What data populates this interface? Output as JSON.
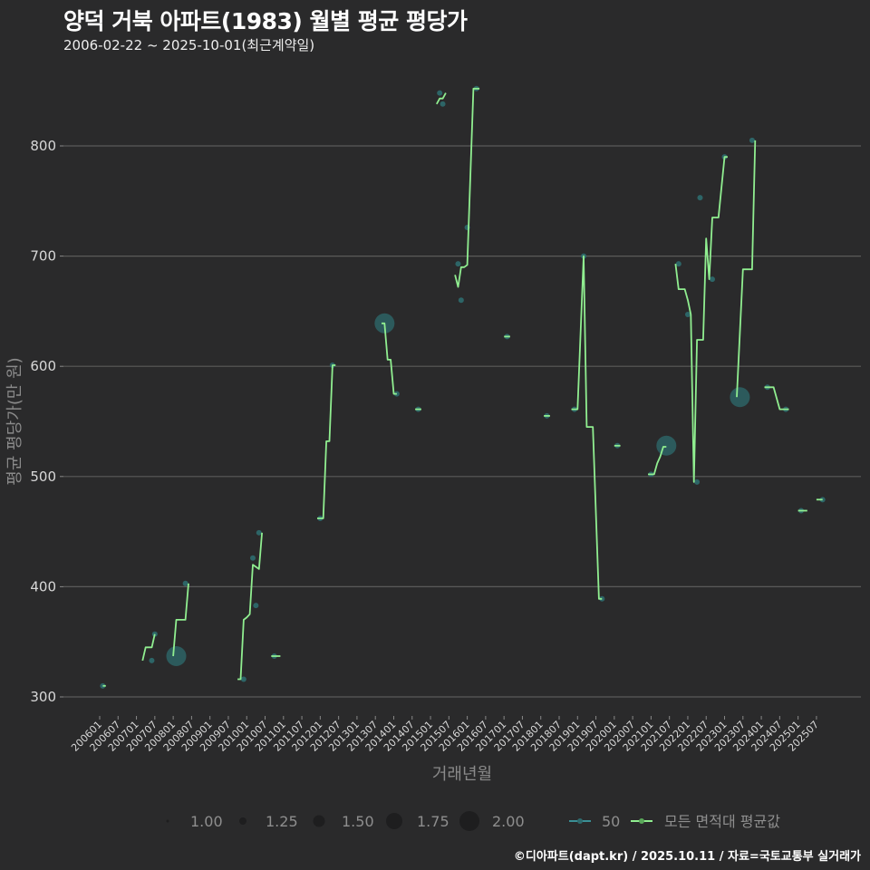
{
  "header": {
    "title": "양덕 거북 아파트(1983) 월별 평균 평당가",
    "subtitle": "2006-02-22 ~ 2025-10-01(최근계약일)"
  },
  "caption": "©디아파트(dapt.kr) / 2025.10.11 / 자료=국토교통부 실거래가",
  "colors": {
    "background": "#2a2a2b",
    "grid": "#5a5a5a",
    "line_all": "#90ee90",
    "dot_50": "#2e6b6e",
    "legend_50": "#3a8f95"
  },
  "chart_data": {
    "type": "line",
    "title": "양덕 거북 아파트(1983) 월별 평균 평당가",
    "subtitle": "2006-02-22 ~ 2025-10-01(최근계약일)",
    "xlabel": "거래년월",
    "ylabel": "평균 평당가(만 원)",
    "ylim": [
      285,
      860
    ],
    "yticks": [
      300,
      400,
      500,
      600,
      700,
      800
    ],
    "xticks": [
      "200601",
      "200607",
      "200701",
      "200707",
      "200801",
      "200807",
      "200901",
      "200907",
      "201001",
      "201007",
      "201101",
      "201107",
      "201201",
      "201207",
      "201301",
      "201307",
      "201401",
      "201407",
      "201501",
      "201507",
      "201601",
      "201607",
      "201701",
      "201707",
      "201801",
      "201807",
      "201901",
      "201907",
      "202001",
      "202007",
      "202101",
      "202107",
      "202201",
      "202207",
      "202301",
      "202307",
      "202401",
      "202407",
      "202501",
      "202507"
    ],
    "grid": true,
    "legend": {
      "size_title": "",
      "size_entries": [
        "1.00",
        "1.25",
        "1.50",
        "1.75",
        "2.00"
      ],
      "series_entries": [
        "50",
        "모든 면적대 평균값"
      ],
      "position": "bottom"
    },
    "series": [
      {
        "name": "모든 면적대 평균값",
        "segments": [
          [
            [
              "2006-02",
              310
            ],
            [
              "2006-03",
              310
            ]
          ],
          [
            [
              "2007-03",
              333
            ],
            [
              "2007-04",
              345
            ],
            [
              "2007-06",
              345
            ],
            [
              "2007-07",
              357
            ]
          ],
          [
            [
              "2008-01",
              337
            ],
            [
              "2008-02",
              370
            ],
            [
              "2008-05",
              370
            ],
            [
              "2008-06",
              403
            ]
          ],
          [
            [
              "2009-10",
              316
            ],
            [
              "2009-11",
              316
            ],
            [
              "2009-12",
              370
            ],
            [
              "2010-01",
              372
            ],
            [
              "2010-02",
              375
            ],
            [
              "2010-03",
              420
            ],
            [
              "2010-04",
              418
            ],
            [
              "2010-05",
              416
            ],
            [
              "2010-06",
              449
            ]
          ],
          [
            [
              "2010-09",
              337
            ],
            [
              "2010-12",
              337
            ]
          ],
          [
            [
              "2011-12",
              462
            ],
            [
              "2012-02",
              462
            ],
            [
              "2012-03",
              532
            ],
            [
              "2012-04",
              532
            ],
            [
              "2012-05",
              601
            ],
            [
              "2012-06",
              601
            ]
          ],
          [
            [
              "2013-09",
              639
            ],
            [
              "2013-10",
              639
            ],
            [
              "2013-11",
              606
            ],
            [
              "2013-12",
              606
            ],
            [
              "2014-01",
              575
            ],
            [
              "2014-02",
              575
            ]
          ],
          [
            [
              "2014-08",
              561
            ],
            [
              "2014-10",
              561
            ]
          ],
          [
            [
              "2015-03",
              838
            ],
            [
              "2015-04",
              843
            ],
            [
              "2015-05",
              843
            ],
            [
              "2015-06",
              848
            ]
          ],
          [
            [
              "2015-09",
              683
            ],
            [
              "2015-10",
              672
            ],
            [
              "2015-11",
              690
            ],
            [
              "2015-12",
              690
            ],
            [
              "2016-01",
              692
            ],
            [
              "2016-03",
              852
            ],
            [
              "2016-05",
              852
            ]
          ],
          [
            [
              "2017-01",
              627
            ],
            [
              "2017-03",
              627
            ]
          ],
          [
            [
              "2018-02",
              555
            ],
            [
              "2018-04",
              555
            ]
          ],
          [
            [
              "2018-11",
              561
            ],
            [
              "2019-01",
              561
            ],
            [
              "2019-03",
              700
            ],
            [
              "2019-04",
              545
            ],
            [
              "2019-06",
              545
            ],
            [
              "2019-08",
              389
            ],
            [
              "2019-09",
              389
            ]
          ],
          [
            [
              "2020-01",
              528
            ],
            [
              "2020-03",
              528
            ]
          ],
          [
            [
              "2020-12",
              502
            ],
            [
              "2021-02",
              502
            ],
            [
              "2021-03",
              512
            ],
            [
              "2021-04",
              518
            ],
            [
              "2021-05",
              527
            ],
            [
              "2021-06",
              527
            ]
          ],
          [
            [
              "2021-09",
              693
            ],
            [
              "2021-10",
              670
            ],
            [
              "2021-12",
              670
            ],
            [
              "2022-01",
              660
            ],
            [
              "2022-02",
              647
            ],
            [
              "2022-03",
              495
            ],
            [
              "2022-04",
              624
            ],
            [
              "2022-06",
              624
            ],
            [
              "2022-07",
              716
            ],
            [
              "2022-08",
              679
            ],
            [
              "2022-09",
              735
            ],
            [
              "2022-11",
              735
            ],
            [
              "2023-01",
              790
            ],
            [
              "2023-02",
              790
            ]
          ],
          [
            [
              "2023-05",
              572
            ],
            [
              "2023-07",
              688
            ],
            [
              "2023-10",
              688
            ],
            [
              "2023-11",
              805
            ]
          ],
          [
            [
              "2024-02",
              581
            ],
            [
              "2024-05",
              581
            ],
            [
              "2024-07",
              561
            ],
            [
              "2024-10",
              561
            ]
          ],
          [
            [
              "2025-01",
              469
            ],
            [
              "2025-04",
              469
            ]
          ],
          [
            [
              "2025-07",
              479
            ],
            [
              "2025-09",
              479
            ]
          ]
        ]
      },
      {
        "name": "50",
        "points": [
          {
            "x": "2006-02",
            "y": 310,
            "size": 1.0
          },
          {
            "x": "2007-06",
            "y": 333,
            "size": 1.0
          },
          {
            "x": "2007-07",
            "y": 357,
            "size": 1.0
          },
          {
            "x": "2008-02",
            "y": 337,
            "size": 2.0
          },
          {
            "x": "2008-05",
            "y": 403,
            "size": 1.0
          },
          {
            "x": "2009-12",
            "y": 316,
            "size": 1.0
          },
          {
            "x": "2010-03",
            "y": 426,
            "size": 1.0
          },
          {
            "x": "2010-04",
            "y": 383,
            "size": 1.0
          },
          {
            "x": "2010-05",
            "y": 449,
            "size": 1.0
          },
          {
            "x": "2010-10",
            "y": 337,
            "size": 1.0
          },
          {
            "x": "2012-01",
            "y": 462,
            "size": 1.0
          },
          {
            "x": "2012-05",
            "y": 601,
            "size": 1.0
          },
          {
            "x": "2013-10",
            "y": 639,
            "size": 2.0
          },
          {
            "x": "2014-02",
            "y": 575,
            "size": 1.0
          },
          {
            "x": "2014-09",
            "y": 561,
            "size": 1.0
          },
          {
            "x": "2015-04",
            "y": 848,
            "size": 1.0
          },
          {
            "x": "2015-05",
            "y": 838,
            "size": 1.0
          },
          {
            "x": "2015-10",
            "y": 693,
            "size": 1.0
          },
          {
            "x": "2015-11",
            "y": 660,
            "size": 1.0
          },
          {
            "x": "2016-01",
            "y": 726,
            "size": 1.0
          },
          {
            "x": "2016-04",
            "y": 852,
            "size": 1.0
          },
          {
            "x": "2017-02",
            "y": 627,
            "size": 1.0
          },
          {
            "x": "2018-03",
            "y": 555,
            "size": 1.0
          },
          {
            "x": "2018-12",
            "y": 561,
            "size": 1.0
          },
          {
            "x": "2019-03",
            "y": 700,
            "size": 1.0
          },
          {
            "x": "2019-09",
            "y": 389,
            "size": 1.0
          },
          {
            "x": "2020-02",
            "y": 528,
            "size": 1.0
          },
          {
            "x": "2021-01",
            "y": 502,
            "size": 1.0
          },
          {
            "x": "2021-06",
            "y": 528,
            "size": 2.0
          },
          {
            "x": "2021-10",
            "y": 693,
            "size": 1.0
          },
          {
            "x": "2022-01",
            "y": 647,
            "size": 1.0
          },
          {
            "x": "2022-04",
            "y": 495,
            "size": 1.0
          },
          {
            "x": "2022-05",
            "y": 753,
            "size": 1.0
          },
          {
            "x": "2022-09",
            "y": 679,
            "size": 1.0
          },
          {
            "x": "2023-01",
            "y": 790,
            "size": 1.0
          },
          {
            "x": "2023-06",
            "y": 572,
            "size": 2.0
          },
          {
            "x": "2023-10",
            "y": 805,
            "size": 1.0
          },
          {
            "x": "2024-03",
            "y": 581,
            "size": 1.0
          },
          {
            "x": "2024-09",
            "y": 561,
            "size": 1.0
          },
          {
            "x": "2025-02",
            "y": 469,
            "size": 1.0
          },
          {
            "x": "2025-09",
            "y": 479,
            "size": 1.0
          }
        ]
      }
    ]
  }
}
